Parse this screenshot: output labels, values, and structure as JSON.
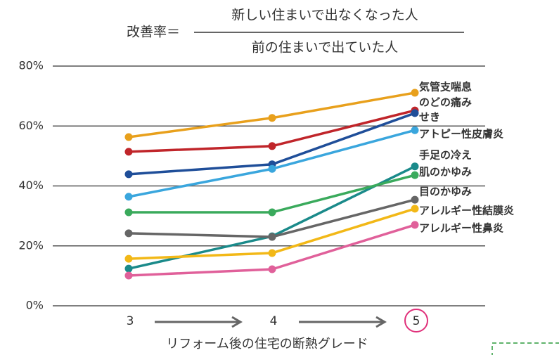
{
  "chart_data": {
    "type": "line",
    "title": {
      "prefix": "改善率＝",
      "numerator": "新しい住まいで出なくなった人",
      "denominator": "前の住まいで出ていた人"
    },
    "x_label": "リフォーム後の住宅の断熱グレード",
    "categories": [
      "3",
      "4",
      "5"
    ],
    "ylim": [
      0,
      80
    ],
    "yticks": [
      {
        "value": 0,
        "label": "0%"
      },
      {
        "value": 20,
        "label": "20%"
      },
      {
        "value": 40,
        "label": "40%"
      },
      {
        "value": 60,
        "label": "60%"
      },
      {
        "value": 80,
        "label": "80%"
      }
    ],
    "grid": true,
    "series": [
      {
        "name": "気管支喘息",
        "color": "#e8a01c",
        "values": [
          56.3,
          62.7,
          71.1
        ]
      },
      {
        "name": "のどの痛み",
        "color": "#c0252a",
        "values": [
          51.4,
          53.3,
          65.2
        ]
      },
      {
        "name": "せき",
        "color": "#1f4e99",
        "values": [
          43.9,
          47.2,
          64.3
        ]
      },
      {
        "name": "アトピー性皮膚炎",
        "color": "#3aa6dd",
        "values": [
          36.4,
          45.7,
          58.6
        ]
      },
      {
        "name": "手足の冷え",
        "color": "#1a8a8a",
        "values": [
          12.4,
          23.2,
          46.5
        ]
      },
      {
        "name": "肌のかゆみ",
        "color": "#3aaa5c",
        "values": [
          31.2,
          31.2,
          43.6
        ]
      },
      {
        "name": "目のかゆみ",
        "color": "#666666",
        "values": [
          24.2,
          23.0,
          35.4
        ]
      },
      {
        "name": "アレルギー性結膜炎",
        "color": "#f2b817",
        "values": [
          15.7,
          17.6,
          32.4
        ]
      },
      {
        "name": "アレルギー性鼻炎",
        "color": "#e0609a",
        "values": [
          10.1,
          12.2,
          27.0
        ]
      }
    ]
  }
}
